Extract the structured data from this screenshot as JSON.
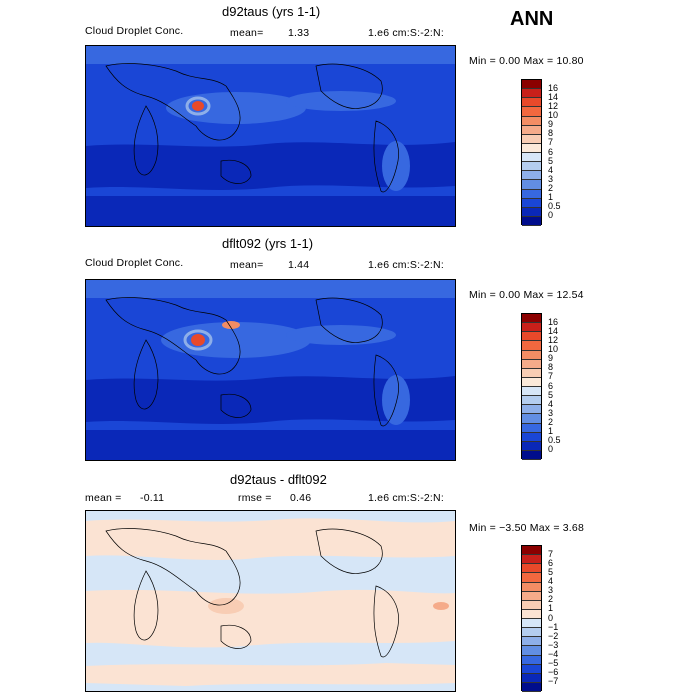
{
  "season": "ANN",
  "panels": [
    {
      "title": "d92taus (yrs 1-1)",
      "variable": "Cloud Droplet Conc.",
      "mean_label": "mean=",
      "mean_value": "1.33",
      "units": "1.e6 cm:S:-2:N:",
      "minmax": "Min =    0.00 Max =   10.80",
      "levels": [
        "16",
        "14",
        "12",
        "10",
        "9",
        "8",
        "7",
        "6",
        "5",
        "4",
        "3",
        "2",
        "1",
        "0.5",
        "0"
      ],
      "colors": [
        "#8b0000",
        "#c8201a",
        "#e8492a",
        "#f2683f",
        "#f38d64",
        "#f5ab8a",
        "#f8cdb4",
        "#fbe9d9",
        "#d7e6f7",
        "#b4cdef",
        "#8eafe9",
        "#628ee3",
        "#3768e0",
        "#1a46d6",
        "#0a28b8",
        "#000d8c"
      ]
    },
    {
      "title": "dflt092 (yrs 1-1)",
      "variable": "Cloud Droplet Conc.",
      "mean_label": "mean=",
      "mean_value": "1.44",
      "units": "1.e6 cm:S:-2:N:",
      "minmax": "Min =    0.00 Max =   12.54",
      "levels": [
        "16",
        "14",
        "12",
        "10",
        "9",
        "8",
        "7",
        "6",
        "5",
        "4",
        "3",
        "2",
        "1",
        "0.5",
        "0"
      ],
      "colors": [
        "#8b0000",
        "#c8201a",
        "#e8492a",
        "#f2683f",
        "#f38d64",
        "#f5ab8a",
        "#f8cdb4",
        "#fbe9d9",
        "#d7e6f7",
        "#b4cdef",
        "#8eafe9",
        "#628ee3",
        "#3768e0",
        "#1a46d6",
        "#0a28b8",
        "#000d8c"
      ]
    },
    {
      "title": "d92taus - dflt092",
      "mean_label": "mean =",
      "mean_value": "-0.11",
      "rmse_label": "rmse =",
      "rmse_value": "0.46",
      "units": "1.e6 cm:S:-2:N:",
      "minmax": "Min =  −3.50 Max =    3.68",
      "levels": [
        "7",
        "6",
        "5",
        "4",
        "3",
        "2",
        "1",
        "0",
        "−1",
        "−2",
        "−3",
        "−4",
        "−5",
        "−6",
        "−7"
      ],
      "colors": [
        "#8b0000",
        "#c8201a",
        "#e8492a",
        "#f2683f",
        "#f38d64",
        "#f5ab8a",
        "#f8cdb4",
        "#fbe3d3",
        "#d6e6f7",
        "#b4cdef",
        "#8eafe9",
        "#628ee3",
        "#3768e0",
        "#1a46d6",
        "#0a28b8",
        "#000d8c"
      ]
    }
  ],
  "map_colors": {
    "ocean_base": "#1a46d6",
    "ocean_dark": "#0a28b8",
    "ocean_light": "#3768e0",
    "highlight": "#8eafe9",
    "hotspot": "#e8492a",
    "diff_pos": "#fbe3d3",
    "diff_neg": "#d6e6f7",
    "coast": "#000000"
  }
}
